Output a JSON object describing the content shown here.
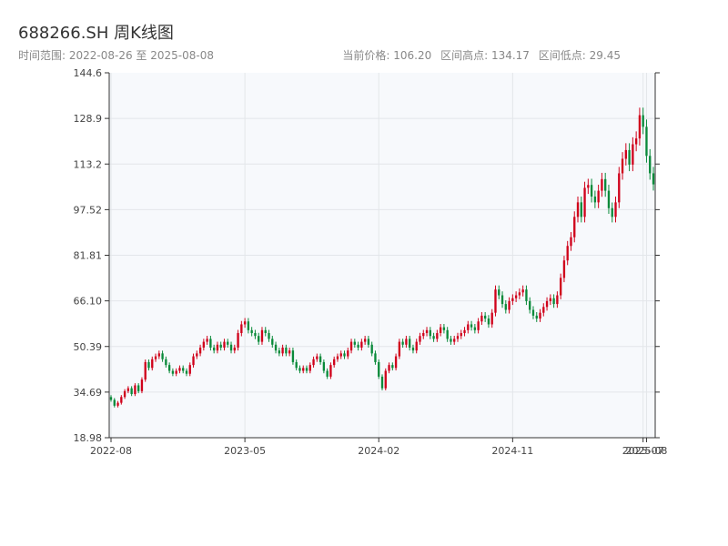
{
  "header": {
    "title": "688266.SH 周K线图",
    "range_label": "时间范围: 2022-08-26 至 2025-08-08",
    "stat_current": "当前价格: 106.20",
    "stat_high": "区间高点: 134.17",
    "stat_low": "区间低点: 29.45"
  },
  "colors": {
    "up": "#d0021b",
    "down": "#0a8a3a",
    "plot_bg": "#f7f9fc",
    "grid": "#e3e6ea",
    "axis": "#333333"
  },
  "chart_data": {
    "type": "candlestick",
    "title": "688266.SH 周K线图",
    "ylim": [
      18.98,
      144.6
    ],
    "yticks": [
      "144.6",
      "128.9",
      "113.2",
      "97.52",
      "81.81",
      "66.10",
      "50.39",
      "34.69",
      "18.98"
    ],
    "xticks": [
      "2022-08",
      "2023-05",
      "2024-02",
      "2024-11",
      "2025-07",
      "2025-08"
    ],
    "xtick_positions": [
      0,
      39,
      78,
      117,
      155,
      156
    ],
    "grid": true,
    "weekly_close_estimates": [
      32,
      30,
      31,
      33,
      35,
      36,
      34,
      37,
      35,
      39,
      45,
      43,
      46,
      47,
      48,
      46,
      44,
      42,
      41,
      42,
      43,
      42,
      41,
      44,
      47,
      48,
      50,
      52,
      53,
      50,
      49,
      51,
      50,
      52,
      51,
      49,
      50,
      55,
      58,
      59,
      56,
      55,
      54,
      52,
      56,
      55,
      53,
      51,
      49,
      48,
      50,
      48,
      49,
      45,
      43,
      42,
      43,
      42,
      44,
      46,
      47,
      45,
      42,
      40,
      44,
      46,
      47,
      48,
      47,
      49,
      52,
      51,
      50,
      52,
      53,
      51,
      48,
      45,
      40,
      36,
      42,
      44,
      43,
      47,
      52,
      51,
      53,
      50,
      49,
      52,
      54,
      55,
      56,
      54,
      53,
      55,
      57,
      56,
      53,
      52,
      53,
      54,
      55,
      56,
      58,
      57,
      56,
      59,
      61,
      60,
      58,
      62,
      70,
      68,
      65,
      63,
      66,
      67,
      68,
      69,
      70,
      66,
      63,
      61,
      60,
      62,
      64,
      66,
      67,
      65,
      68,
      74,
      80,
      85,
      88,
      95,
      100,
      95,
      105,
      106,
      102,
      100,
      104,
      108,
      104,
      98,
      95,
      100,
      110,
      115,
      118,
      113,
      120,
      122,
      130,
      126,
      116,
      110,
      106.2
    ],
    "current_price": 106.2,
    "high": 134.17,
    "low": 29.45
  }
}
